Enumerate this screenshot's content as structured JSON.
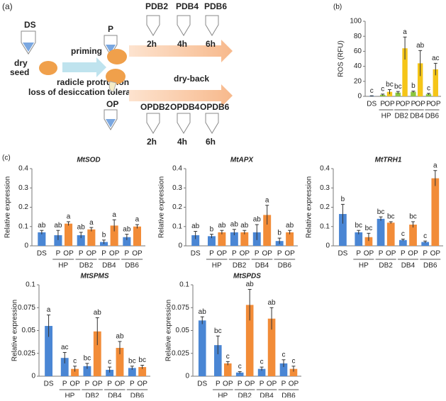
{
  "diagram": {
    "label": "(a)",
    "ds": "DS",
    "dry_seed": [
      "dry",
      "seed"
    ],
    "priming": "priming",
    "radicle": "radicle protrusion",
    "loss": "loss of desiccation tolerance",
    "p": "P",
    "op": "OP",
    "pdb": [
      "PDB2",
      "PDB4",
      "PDB6"
    ],
    "p_times": [
      "2h",
      "4h",
      "6h"
    ],
    "dry_back": "dry-back",
    "opdb": [
      "OPDB2",
      "OPDB4",
      "OPDB6"
    ],
    "op_times": [
      "2h",
      "4h",
      "6h"
    ]
  },
  "chart_data": [
    {
      "type": "bar",
      "panel": "(b)",
      "ylabel": "ROS (RFU)",
      "categories": [
        "DS",
        "P",
        "OP",
        "P",
        "OP",
        "P",
        "OP",
        "P",
        "OP"
      ],
      "groups": [
        "HP",
        "DB2",
        "DB4",
        "DB6"
      ],
      "values": [
        0.5,
        2,
        6,
        5,
        64,
        6,
        44,
        3,
        36
      ],
      "errors": [
        0.3,
        1,
        3,
        1.5,
        15,
        1,
        17,
        1,
        8
      ],
      "letters": [
        "c",
        "c",
        "bc",
        "bc",
        "a",
        "b",
        "ab",
        "c",
        "ac"
      ],
      "colors": [
        "#4a86d4",
        "#8cc63f",
        "#f5c518",
        "#8cc63f",
        "#f5c518",
        "#8cc63f",
        "#f5c518",
        "#8cc63f",
        "#f5c518"
      ],
      "ylim": [
        0,
        100
      ],
      "yticks": [
        0,
        20,
        40,
        60,
        80,
        100
      ]
    },
    {
      "type": "bar",
      "panel": "(c)",
      "title": "MtSOD",
      "ylabel": "Relative expression",
      "categories": [
        "DS",
        "P",
        "OP",
        "P",
        "OP",
        "P",
        "OP",
        "P",
        "OP"
      ],
      "groups": [
        "HP",
        "DB2",
        "DB4",
        "DB6"
      ],
      "values": [
        0.07,
        0.055,
        0.115,
        0.055,
        0.085,
        0.02,
        0.105,
        0.045,
        0.1
      ],
      "errors": [
        0.01,
        0.025,
        0.01,
        0.015,
        0.01,
        0.01,
        0.03,
        0.015,
        0.01
      ],
      "letters": [
        "ab",
        "ab",
        "a",
        "ab",
        "a",
        "b",
        "a",
        "ab",
        "a"
      ],
      "colors": [
        "#4a86d4",
        "#4a86d4",
        "#f28c38",
        "#4a86d4",
        "#f28c38",
        "#4a86d4",
        "#f28c38",
        "#4a86d4",
        "#f28c38"
      ],
      "ylim": [
        0,
        0.4
      ],
      "yticks": [
        0,
        0.1,
        0.2,
        0.3,
        0.4
      ]
    },
    {
      "type": "bar",
      "title": "MtAPX",
      "ylabel": "Relative expression",
      "categories": [
        "DS",
        "P",
        "OP",
        "P",
        "OP",
        "P",
        "OP",
        "P",
        "OP"
      ],
      "groups": [
        "HP",
        "DB2",
        "DB4",
        "DB6"
      ],
      "values": [
        0.055,
        0.05,
        0.07,
        0.07,
        0.07,
        0.07,
        0.16,
        0.025,
        0.07
      ],
      "errors": [
        0.02,
        0.01,
        0.01,
        0.015,
        0.01,
        0.04,
        0.05,
        0.015,
        0.01
      ],
      "letters": [
        "ab",
        "b",
        "ab",
        "ab",
        "ab",
        "ab",
        "a",
        "b",
        "ab"
      ],
      "colors": [
        "#4a86d4",
        "#4a86d4",
        "#f28c38",
        "#4a86d4",
        "#f28c38",
        "#4a86d4",
        "#f28c38",
        "#4a86d4",
        "#f28c38"
      ],
      "ylim": [
        0,
        0.4
      ],
      "yticks": [
        0,
        0.1,
        0.2,
        0.3,
        0.4
      ]
    },
    {
      "type": "bar",
      "title": "MtTRH1",
      "ylabel": "Relative expression",
      "categories": [
        "DS",
        "P",
        "OP",
        "P",
        "OP",
        "P",
        "OP",
        "P",
        "OP"
      ],
      "groups": [
        "HP",
        "DB2",
        "DB4",
        "DB6"
      ],
      "values": [
        0.165,
        0.07,
        0.045,
        0.14,
        0.12,
        0.03,
        0.11,
        0.02,
        0.35
      ],
      "errors": [
        0.05,
        0.01,
        0.02,
        0.01,
        0.005,
        0.005,
        0.015,
        0.005,
        0.04
      ],
      "letters": [
        "b",
        "bc",
        "bc",
        "bc",
        "bc",
        "c",
        "bc",
        "c",
        "a"
      ],
      "colors": [
        "#4a86d4",
        "#4a86d4",
        "#f28c38",
        "#4a86d4",
        "#f28c38",
        "#4a86d4",
        "#f28c38",
        "#4a86d4",
        "#f28c38"
      ],
      "ylim": [
        0,
        0.4
      ],
      "yticks": [
        0,
        0.1,
        0.2,
        0.3,
        0.4
      ]
    },
    {
      "type": "bar",
      "title": "MtSPMS",
      "ylabel": "Relative expression",
      "categories": [
        "DS",
        "P",
        "OP",
        "P",
        "OP",
        "P",
        "OP",
        "P",
        "OP"
      ],
      "groups": [
        "HP",
        "DB2",
        "DB4",
        "DB6"
      ],
      "values": [
        0.055,
        0.02,
        0.008,
        0.011,
        0.049,
        0.007,
        0.031,
        0.009,
        0.01
      ],
      "errors": [
        0.012,
        0.006,
        0.003,
        0.003,
        0.015,
        0.003,
        0.007,
        0.002,
        0.002
      ],
      "letters": [
        "a",
        "ac",
        "c",
        "bc",
        "ab",
        "c",
        "ab",
        "bc",
        "bc"
      ],
      "colors": [
        "#4a86d4",
        "#4a86d4",
        "#f28c38",
        "#4a86d4",
        "#f28c38",
        "#4a86d4",
        "#f28c38",
        "#4a86d4",
        "#f28c38"
      ],
      "ylim": [
        0,
        0.1
      ],
      "yticks": [
        0,
        0.025,
        0.05,
        0.075,
        0.1
      ]
    },
    {
      "type": "bar",
      "title": "MtSPDS",
      "ylabel": "Relative expression",
      "categories": [
        "DS",
        "P",
        "OP",
        "P",
        "OP",
        "P",
        "OP",
        "P",
        "OP"
      ],
      "groups": [
        "HP",
        "DB2",
        "DB4",
        "DB6"
      ],
      "values": [
        0.061,
        0.034,
        0.014,
        0.004,
        0.078,
        0.008,
        0.063,
        0.014,
        0.008
      ],
      "errors": [
        0.004,
        0.01,
        0.002,
        0.001,
        0.017,
        0.002,
        0.012,
        0.004,
        0.003
      ],
      "letters": [
        "ab",
        "bc",
        "c",
        "c",
        "ab",
        "c",
        "ab",
        "c",
        "c"
      ],
      "colors": [
        "#4a86d4",
        "#4a86d4",
        "#f28c38",
        "#4a86d4",
        "#f28c38",
        "#4a86d4",
        "#f28c38",
        "#4a86d4",
        "#f28c38"
      ],
      "ylim": [
        0,
        0.1
      ],
      "yticks": [
        0,
        0.025,
        0.05,
        0.075,
        0.1
      ]
    }
  ]
}
